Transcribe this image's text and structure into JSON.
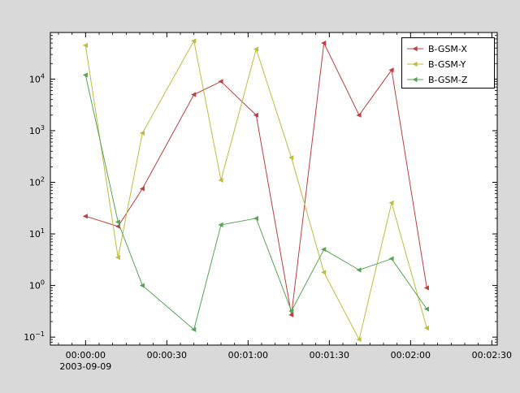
{
  "figure": {
    "background": "#d9d9d9",
    "plot_background": "#ffffff",
    "axis_color": "#000000"
  },
  "chart_data": {
    "type": "line",
    "title": "",
    "xlabel": "",
    "ylabel": "",
    "x_seconds": [
      0,
      12,
      21,
      40,
      50,
      63,
      76,
      88,
      101,
      113,
      126
    ],
    "x_axis": {
      "range_seconds": [
        -13,
        152
      ],
      "tick_seconds": [
        0,
        30,
        60,
        90,
        120,
        150
      ],
      "tick_labels": [
        "00:00:00",
        "00:00:30",
        "00:01:00",
        "00:01:30",
        "00:02:00",
        "00:02:30"
      ],
      "date_label": "2003-09-09",
      "minor_step_seconds": 5
    },
    "y_axis": {
      "scale": "log",
      "range": [
        0.07,
        80000
      ],
      "ticks": [
        0.1,
        1,
        10,
        100,
        1000,
        10000
      ],
      "tick_exponents": [
        "-1",
        "0",
        "1",
        "2",
        "3",
        "4"
      ]
    },
    "series": [
      {
        "name": "B-GSM-X",
        "color": "#bc3f41",
        "values": [
          22,
          14,
          75,
          5000,
          9000,
          2000,
          0.27,
          50000,
          2000,
          15000,
          0.9
        ]
      },
      {
        "name": "B-GSM-Y",
        "color": "#bfbc3f",
        "values": [
          45000,
          3.5,
          900,
          55000,
          110,
          38000,
          300,
          1.8,
          0.09,
          40,
          0.15
        ]
      },
      {
        "name": "B-GSM-Z",
        "color": "#56a556",
        "values": [
          12000,
          17,
          1.0,
          0.14,
          15,
          20,
          0.32,
          5,
          2,
          3.3,
          0.35
        ]
      }
    ],
    "legend": {
      "position": "top-right",
      "entries": [
        "B-GSM-X",
        "B-GSM-Y",
        "B-GSM-Z"
      ]
    },
    "grid": false
  }
}
